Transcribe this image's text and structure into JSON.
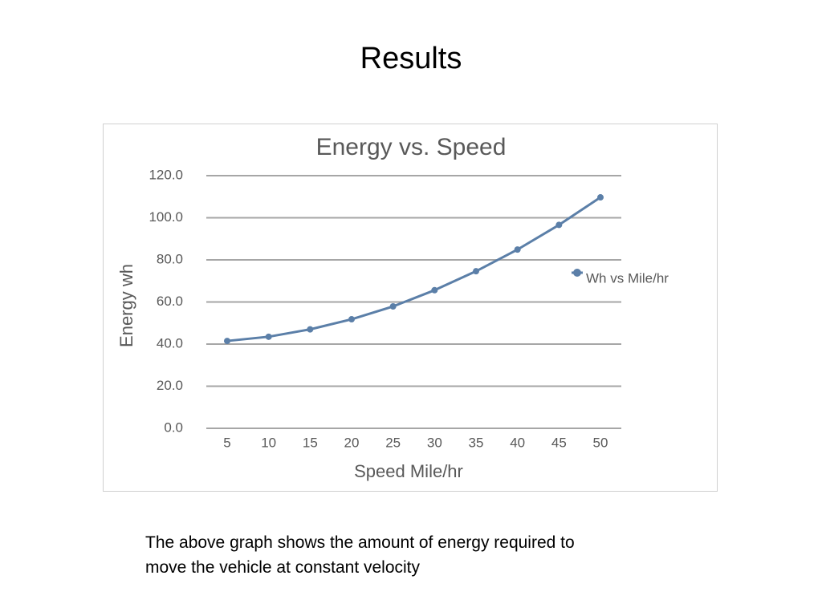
{
  "slide": {
    "title": "Results"
  },
  "caption": {
    "line1": "The above graph shows the amount of energy required to",
    "line2": "move the vehicle at constant velocity"
  },
  "chart_data": {
    "type": "line",
    "title": "Energy vs. Speed",
    "xlabel": "Speed Mile/hr",
    "ylabel": "Energy wh",
    "categories": [
      "5",
      "10",
      "15",
      "20",
      "25",
      "30",
      "35",
      "40",
      "45",
      "50"
    ],
    "series": [
      {
        "name": "Wh vs Mile/hr",
        "values": [
          41.5,
          43.5,
          47.0,
          51.8,
          57.9,
          65.6,
          74.6,
          84.9,
          96.6,
          109.7
        ],
        "color": "#5b7fa8"
      }
    ],
    "ylim": [
      0,
      120
    ],
    "yticks": [
      "0.0",
      "20.0",
      "40.0",
      "60.0",
      "80.0",
      "100.0",
      "120.0"
    ],
    "grid": true,
    "legend": "right",
    "colors": {
      "grid": "#a6a6a6",
      "text": "#595959",
      "title": "#595959"
    }
  }
}
